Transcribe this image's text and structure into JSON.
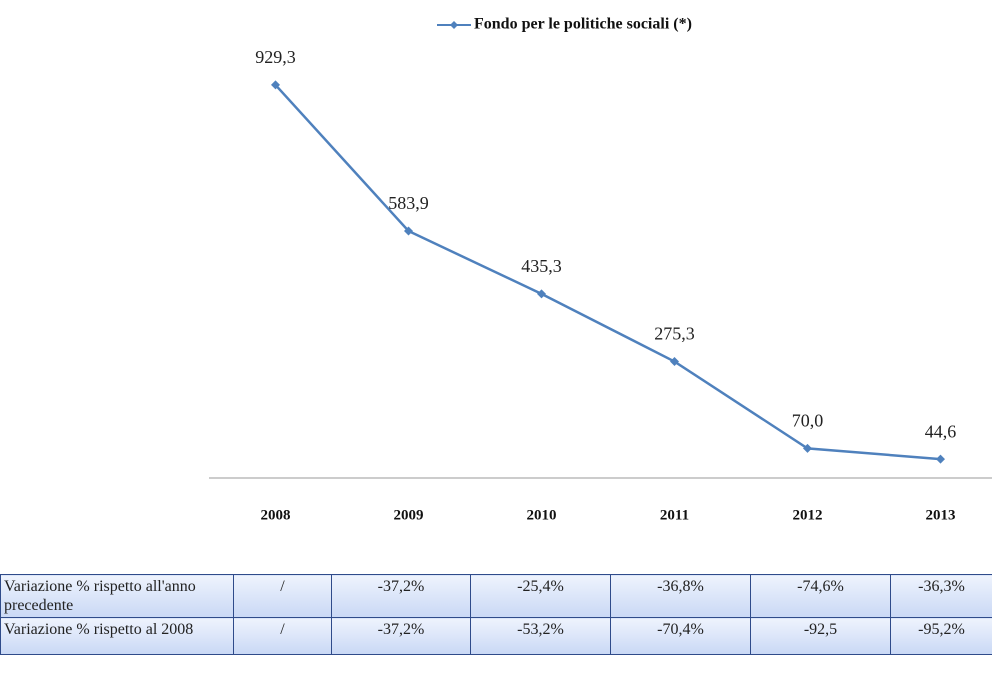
{
  "chart_data": {
    "type": "line",
    "legend": "Fondo per le politiche sociali (*)",
    "categories": [
      "2008",
      "2009",
      "2010",
      "2011",
      "2012",
      "2013"
    ],
    "series": [
      {
        "name": "Fondo per le politiche sociali (*)",
        "color": "#4f81bd",
        "values": [
          929.3,
          583.9,
          435.3,
          275.3,
          70.0,
          44.6
        ],
        "value_labels": [
          "929,3",
          "583,9",
          "435,3",
          "275,3",
          "70,0",
          "44,6"
        ]
      }
    ],
    "ylim": [
      0,
      1000
    ]
  },
  "table": {
    "rows": [
      [
        "Variazione % rispetto all'anno precedente",
        "/",
        "-37,2%",
        "-25,4%",
        "-36,8%",
        "-74,6%",
        "-36,3%"
      ],
      [
        "Variazione % rispetto al 2008",
        "/",
        "-37,2%",
        "-53,2%",
        "-70,4%",
        "-92,5",
        "-95,2%"
      ]
    ]
  }
}
